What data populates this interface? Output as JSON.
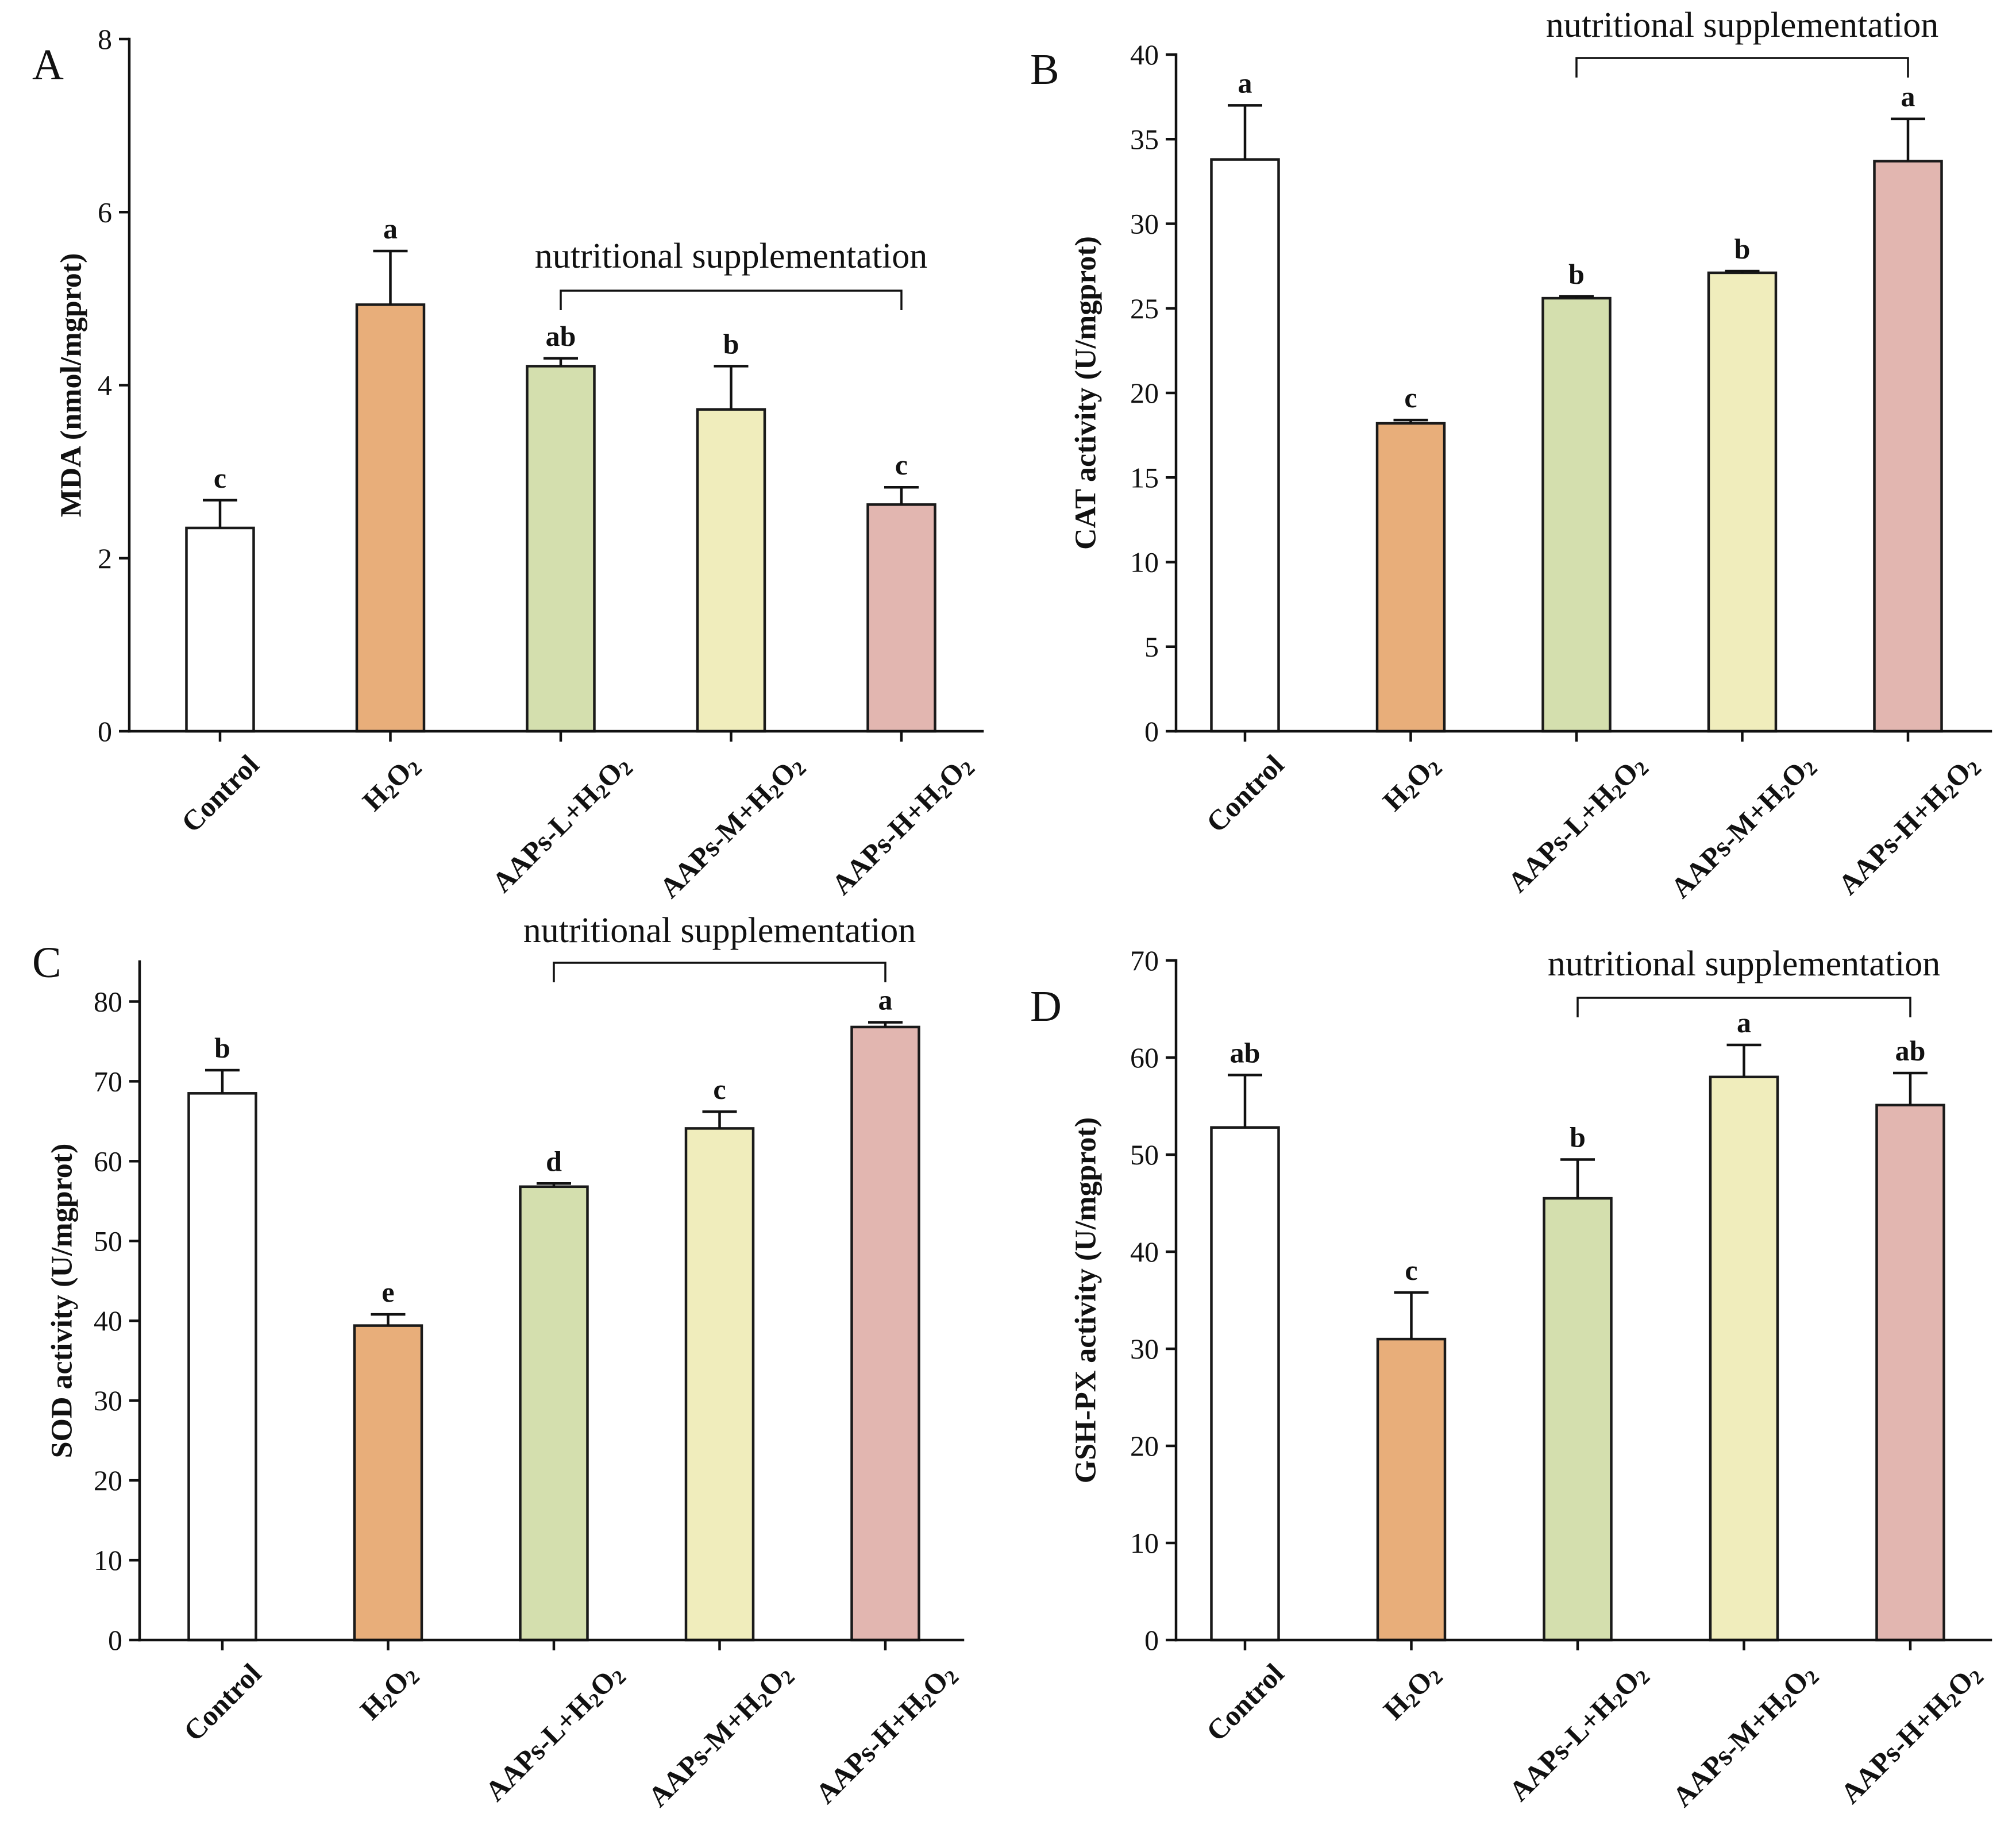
{
  "colors": {
    "bar_fills": [
      "#FFFFFF",
      "#E8AE7A",
      "#D4DFAE",
      "#F0EDBC",
      "#E2B6B0"
    ],
    "stroke": "#1A1A1A"
  },
  "chart_data": [
    {
      "panel": "A",
      "type": "bar",
      "categories": [
        "Control",
        "H₂O₂",
        "AAPs-L+H₂O₂",
        "AAPs-M+H₂O₂",
        "AAPs-H+H₂O₂"
      ],
      "values": [
        2.35,
        4.93,
        4.22,
        3.72,
        2.62
      ],
      "error": [
        0.32,
        0.62,
        0.09,
        0.5,
        0.2
      ],
      "significance": [
        "c",
        "a",
        "ab",
        "b",
        "c"
      ],
      "ylabel": "MDA (nmol/mgprot)",
      "ylim": [
        0,
        8
      ],
      "yticks": [
        0,
        2,
        4,
        6,
        8
      ],
      "annotation": {
        "text": "nutritional supplementation",
        "from": 2,
        "to": 4
      }
    },
    {
      "panel": "B",
      "type": "bar",
      "categories": [
        "Control",
        "H₂O₂",
        "AAPs-L+H₂O₂",
        "AAPs-M+H₂O₂",
        "AAPs-H+H₂O₂"
      ],
      "values": [
        33.8,
        18.2,
        25.6,
        27.1,
        33.7
      ],
      "error": [
        3.2,
        0.2,
        0.1,
        0.1,
        2.5
      ],
      "significance": [
        "a",
        "c",
        "b",
        "b",
        "a"
      ],
      "ylabel": "CAT activity (U/mgprot)",
      "ylim": [
        0,
        40
      ],
      "yticks": [
        0,
        5,
        10,
        15,
        20,
        25,
        30,
        35,
        40
      ],
      "annotation": {
        "text": "nutritional supplementation",
        "from": 2,
        "to": 4
      }
    },
    {
      "panel": "C",
      "type": "bar",
      "categories": [
        "Control",
        "H₂O₂",
        "AAPs-L+H₂O₂",
        "AAPs-M+H₂O₂",
        "AAPs-H+H₂O₂"
      ],
      "values": [
        68.5,
        39.4,
        56.8,
        64.1,
        76.8
      ],
      "error": [
        2.9,
        1.4,
        0.4,
        2.1,
        0.6
      ],
      "significance": [
        "b",
        "e",
        "d",
        "c",
        "a"
      ],
      "ylabel": "SOD activity (U/mgprot)",
      "ylim": [
        0,
        85
      ],
      "yticks": [
        0,
        10,
        20,
        30,
        40,
        50,
        60,
        70,
        80
      ],
      "annotation": {
        "text": "nutritional supplementation",
        "from": 2,
        "to": 4
      }
    },
    {
      "panel": "D",
      "type": "bar",
      "categories": [
        "Control",
        "H₂O₂",
        "AAPs-L+H₂O₂",
        "AAPs-M+H₂O₂",
        "AAPs-H+H₂O₂"
      ],
      "values": [
        52.8,
        31.0,
        45.5,
        58.0,
        55.1
      ],
      "error": [
        5.4,
        4.8,
        4.0,
        3.3,
        3.3
      ],
      "significance": [
        "ab",
        "c",
        "b",
        "a",
        "ab"
      ],
      "ylabel": "GSH-PX activity (U/mgprot)",
      "ylim": [
        0,
        70
      ],
      "yticks": [
        0,
        10,
        20,
        30,
        40,
        50,
        60,
        70
      ],
      "annotation": {
        "text": "nutritional supplementation",
        "from": 2,
        "to": 4
      }
    }
  ]
}
